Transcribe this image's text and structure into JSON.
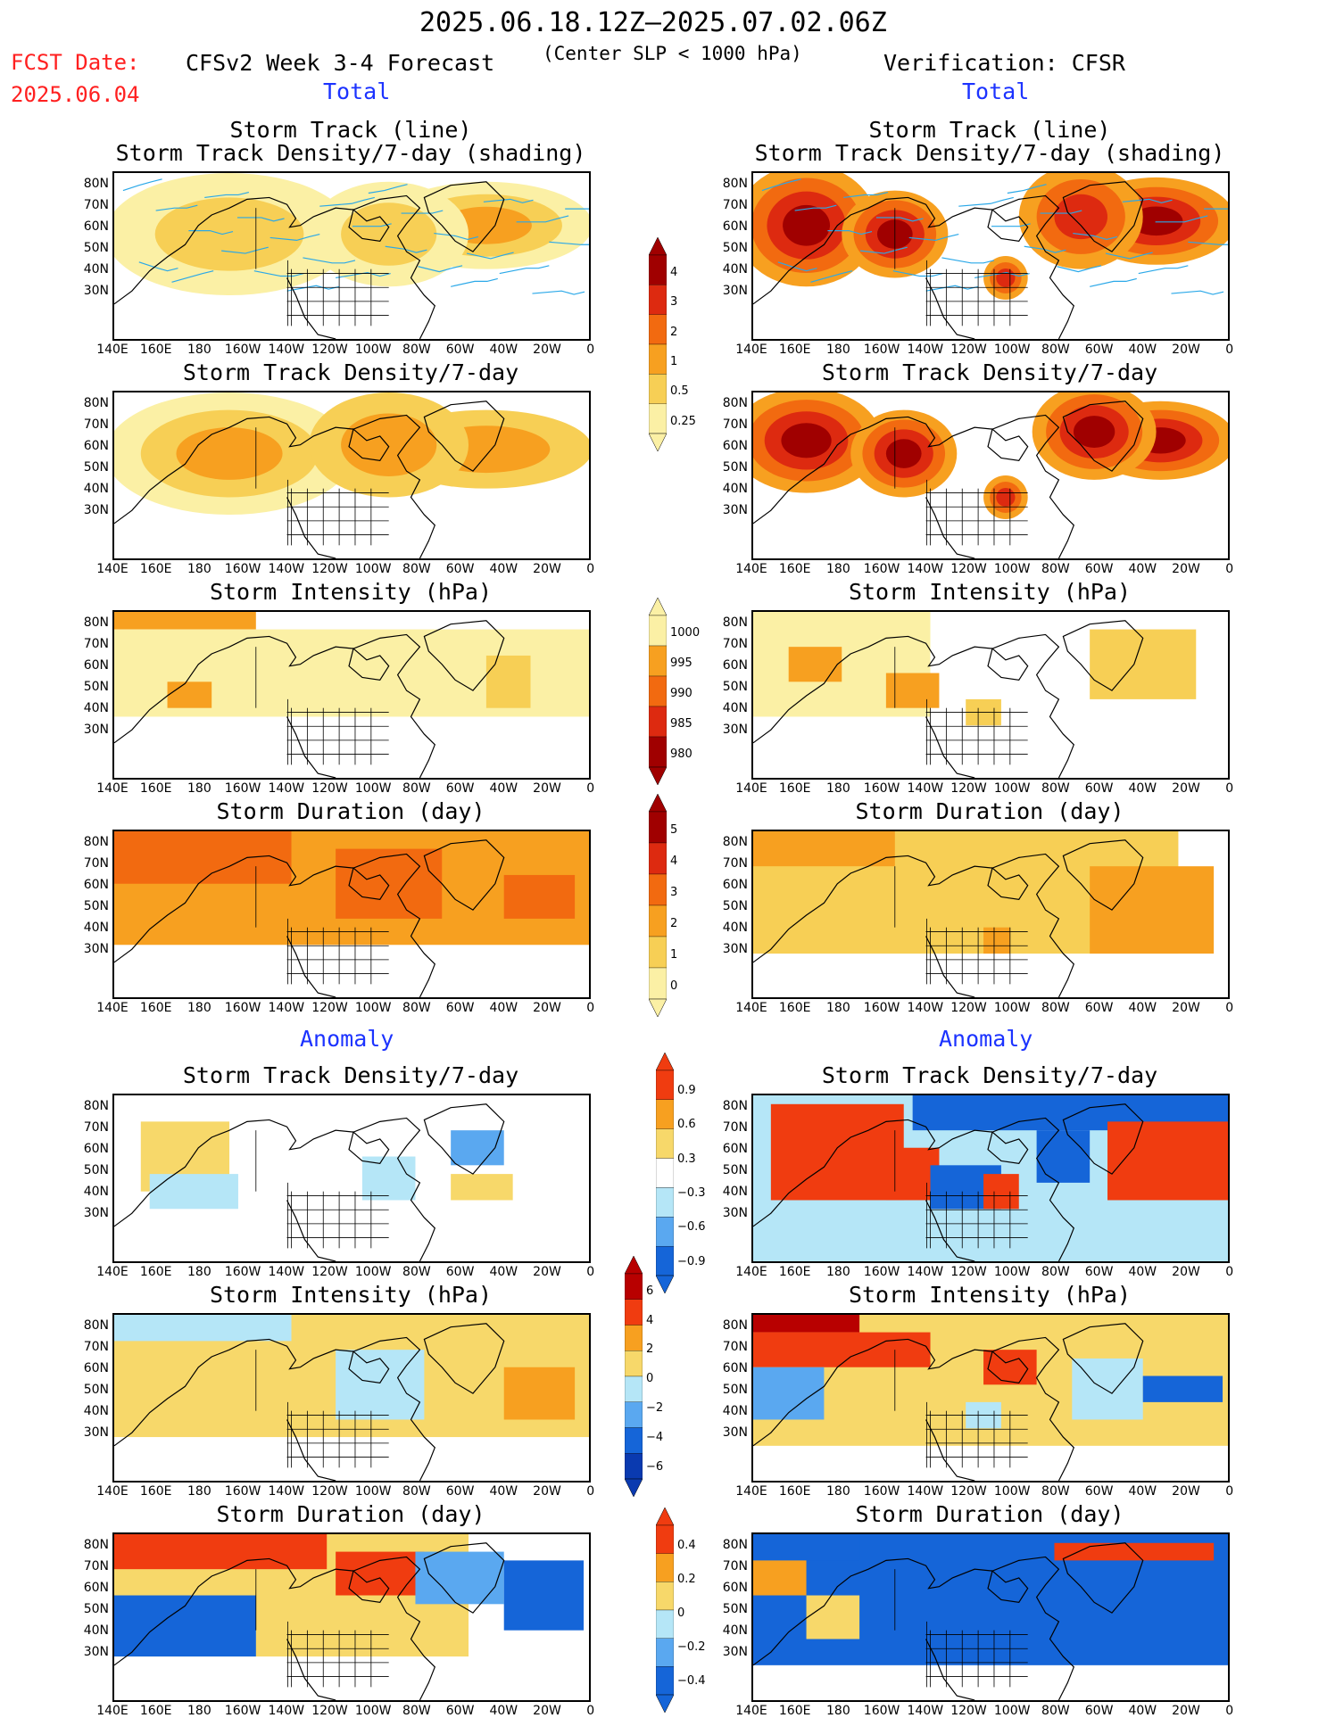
{
  "header": {
    "period": "2025.06.18.12Z–2025.07.02.06Z",
    "fcst_label": "FCST Date:",
    "fcst_date": "2025.06.04",
    "model_title": "CFSv2 Week 3-4 Forecast",
    "criterion": "(Center SLP < 1000 hPa)",
    "verification": "Verification: CFSR"
  },
  "sections": {
    "total_left": "Total",
    "total_right": "Total",
    "anomaly_left": "Anomaly",
    "anomaly_right": "Anomaly"
  },
  "panel_titles": {
    "track_line": "Storm Track (line)",
    "track_shading": "Storm Track Density/7-day (shading)",
    "density": "Storm Track Density/7-day",
    "intensity": "Storm Intensity (hPa)",
    "duration": "Storm Duration (day)"
  },
  "axes": {
    "lat_labels": [
      "80N",
      "70N",
      "60N",
      "50N",
      "40N",
      "30N"
    ],
    "lon_labels": [
      "140E",
      "160E",
      "180",
      "160W",
      "140W",
      "120W",
      "100W",
      "80W",
      "60W",
      "40W",
      "20W",
      "0"
    ]
  },
  "colorbars": [
    {
      "id": "density",
      "labels": [
        "4",
        "3",
        "2",
        "1",
        "0.5",
        "0.25"
      ],
      "colors": [
        "#a00000",
        "#dd2a10",
        "#f26a10",
        "#f7a020",
        "#f7cf55",
        "#fbf0a5"
      ]
    },
    {
      "id": "intensity",
      "labels": [
        "1000",
        "995",
        "990",
        "985",
        "980"
      ],
      "colors": [
        "#fbf0a5",
        "#f7a020",
        "#f26a10",
        "#dd2a10",
        "#a00000"
      ]
    },
    {
      "id": "duration",
      "labels": [
        "5",
        "4",
        "3",
        "2",
        "1",
        "0"
      ],
      "colors": [
        "#a00000",
        "#dd2a10",
        "#f26a10",
        "#f7a020",
        "#f7cf55",
        "#fbf0a5"
      ]
    },
    {
      "id": "density_anom",
      "labels": [
        "0.9",
        "0.6",
        "0.3",
        "−0.3",
        "−0.6",
        "−0.9"
      ],
      "colors": [
        "#f03c10",
        "#f7a020",
        "#f7d86a",
        "#ffffff",
        "#b5e6f7",
        "#5aa8f0",
        "#1565d8"
      ]
    },
    {
      "id": "intensity_anom",
      "labels": [
        "6",
        "4",
        "2",
        "0",
        "−2",
        "−4",
        "−6"
      ],
      "colors": [
        "#b80000",
        "#f03c10",
        "#f7a020",
        "#f7d86a",
        "#b5e6f7",
        "#5aa8f0",
        "#1565d8",
        "#0a3ab0"
      ]
    },
    {
      "id": "duration_anom",
      "labels": [
        "0.4",
        "0.2",
        "0",
        "−0.2",
        "−0.4"
      ],
      "colors": [
        "#f03c10",
        "#f7a020",
        "#f7d86a",
        "#b5e6f7",
        "#5aa8f0",
        "#1565d8"
      ]
    }
  ],
  "palette": {
    "track_line": "#2aa8e8",
    "land_outline": "#000000",
    "title_red": "#ff2020",
    "section_blue": "#1c33ff"
  }
}
